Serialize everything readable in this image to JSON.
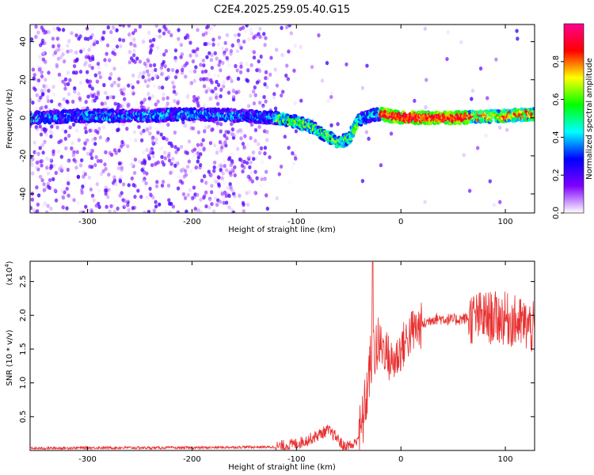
{
  "title": "C2E4.2025.259.05.40.G15",
  "chart_data": [
    {
      "type": "heatmap",
      "xlabel": "Height of straight line (km)",
      "ylabel": "Frequency (Hz)",
      "xlim": [
        -355,
        128
      ],
      "ylim": [
        -50,
        49
      ],
      "xticks": [
        -300,
        -200,
        -100,
        0,
        100
      ],
      "yticks": [
        -40,
        -20,
        0,
        20,
        40
      ],
      "colorbar": {
        "label": "Normalized spectral amplitude",
        "range": [
          0,
          1
        ],
        "ticks": [
          "0.0",
          "0.2",
          "0.4",
          "0.6",
          "0.8"
        ],
        "colors": [
          "#ffffff",
          "#7f00ff",
          "#0000ff",
          "#00ffff",
          "#00ff00",
          "#ffff00",
          "#ff0000",
          "#ff0090"
        ]
      },
      "ridge_profile": {
        "x": [
          -355,
          -300,
          -250,
          -200,
          -150,
          -120,
          -100,
          -85,
          -70,
          -60,
          -50,
          -40,
          -30,
          -20,
          0,
          50,
          100,
          128
        ],
        "freq": [
          0,
          1,
          1,
          2,
          1,
          0,
          -2,
          -5,
          -10,
          -13,
          -11,
          -1,
          1,
          2,
          0,
          0,
          1,
          2
        ]
      }
    },
    {
      "type": "line",
      "xlabel": "Height of straight line (km)",
      "ylabel": "SNR (10 * v/v)",
      "scale_label": "(x10",
      "scale_exp": "4",
      "xlim": [
        -355,
        128
      ],
      "ylim": [
        0,
        2.8
      ],
      "xticks": [
        -300,
        -200,
        -100,
        0,
        100
      ],
      "yticks": [
        0.5,
        1.0,
        1.5,
        2.0,
        2.5
      ],
      "ytick_labels": [
        "0.5",
        "1.0",
        "1.5",
        "2.0",
        "2.5"
      ],
      "color": "#e83030",
      "series_envelope": {
        "x": [
          -355,
          -300,
          -200,
          -150,
          -120,
          -110,
          -100,
          -90,
          -80,
          -70,
          -62,
          -55,
          -45,
          -38,
          -33,
          -30,
          -28,
          -25,
          -20,
          -15,
          -10,
          -5,
          0,
          10,
          20,
          30,
          40,
          50,
          60,
          80,
          100,
          110,
          120,
          128
        ],
        "y": [
          0.03,
          0.04,
          0.04,
          0.05,
          0.05,
          0.07,
          0.1,
          0.15,
          0.22,
          0.3,
          0.2,
          0.06,
          0.08,
          0.3,
          0.8,
          1.2,
          1.4,
          1.5,
          1.55,
          1.5,
          1.3,
          1.35,
          1.5,
          1.75,
          1.85,
          1.95,
          1.95,
          1.93,
          1.95,
          1.97,
          1.95,
          1.9,
          1.85,
          1.8
        ]
      },
      "spike": {
        "x": -27,
        "y": 2.8
      }
    }
  ]
}
